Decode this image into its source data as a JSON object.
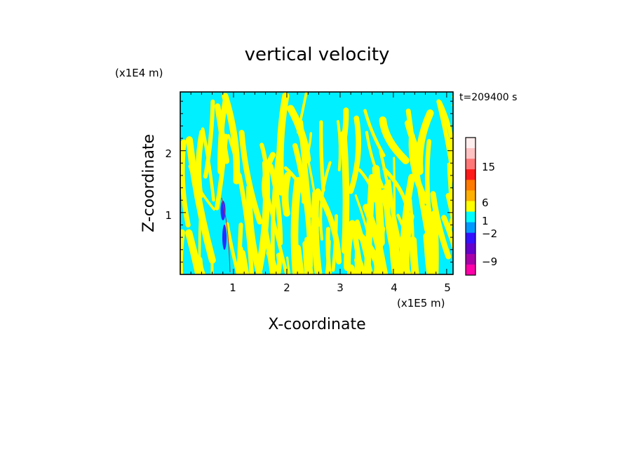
{
  "chart_data": {
    "type": "heatmap",
    "title": "vertical velocity",
    "xlabel": "X-coordinate",
    "ylabel": "Z-coordinate",
    "x_unit": "(x1E5 m)",
    "y_unit": "(x1E4 m)",
    "time_label": "t=209400 s",
    "xlim": [
      0,
      5.12
    ],
    "ylim": [
      0,
      2.95
    ],
    "x_ticks": [
      "1",
      "2",
      "3",
      "4",
      "5"
    ],
    "y_ticks": [
      "1",
      "2"
    ],
    "colorbar": {
      "labels": [
        "15",
        "6",
        "1",
        "−2",
        "−9"
      ],
      "colors": [
        "#ffeeee",
        "#ffc2c2",
        "#ff7777",
        "#ff1a1a",
        "#ff7a00",
        "#ffb000",
        "#ffff00",
        "#00ffff",
        "#0099ff",
        "#3311ff",
        "#6600cc",
        "#aa00aa",
        "#ff00aa"
      ]
    },
    "dominant_colors": {
      "positive": "#ffff00",
      "negative": "#00f0ff",
      "strong_negative": "#2a2aff"
    }
  }
}
